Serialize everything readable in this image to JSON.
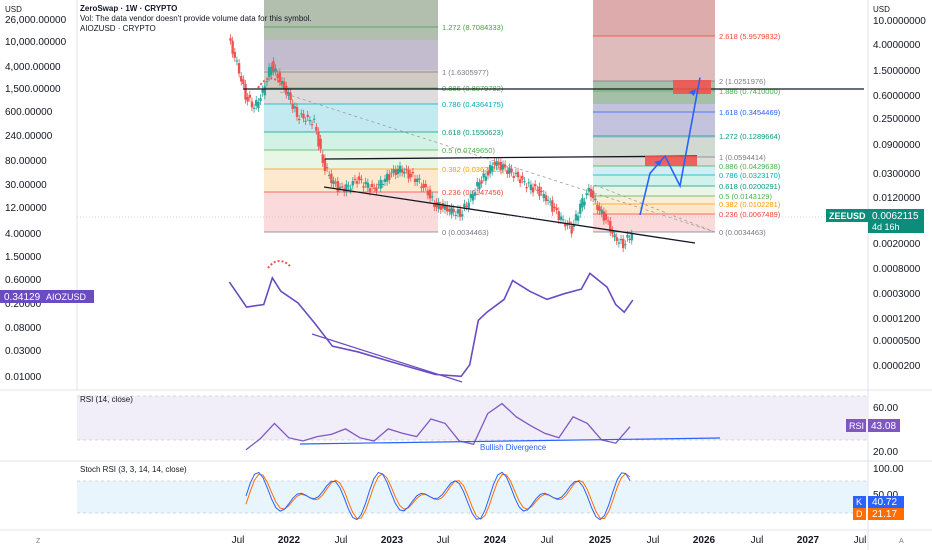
{
  "header": {
    "title": "ZeroSwap · 1W · CRYPTO",
    "vol_note": "Vol: The data vendor doesn't provide volume data for this symbol.",
    "compare_symbol": "AIOZUSD · CRYPTO"
  },
  "axis": {
    "left_currency": "USD",
    "right_currency": "USD",
    "left_ticks": [
      "26,000.00000",
      "10,000.00000",
      "4,000.00000",
      "1,500.00000",
      "600.00000",
      "240.00000",
      "80.00000",
      "30.00000",
      "12.00000",
      "4.00000",
      "1.50000",
      "0.60000",
      "0.20000",
      "0.08000",
      "0.03000",
      "0.01000"
    ],
    "right_ticks": [
      "10.0000000",
      "4.0000000",
      "1.5000000",
      "0.6000000",
      "0.2500000",
      "0.0900000",
      "0.0300000",
      "0.0120000",
      "0.0050000",
      "0.0020000",
      "0.0008000",
      "0.0003000",
      "0.0001200",
      "0.0000500",
      "0.0000200"
    ],
    "time_labels": [
      "Jul",
      "2022",
      "Jul",
      "2023",
      "Jul",
      "2024",
      "Jul",
      "2025",
      "Jul",
      "2026",
      "Jul",
      "2027",
      "Jul"
    ],
    "tz_icon_label": "Z",
    "scroll_icon_label": "A"
  },
  "price_badges": {
    "main_symbol": "ZEEUSD",
    "main_price": "0.0062115",
    "countdown": "4d 16h",
    "compare_price": "0.34129",
    "compare_symbol": "AIOZUSD"
  },
  "fib_left": {
    "levels": [
      {
        "ratio": "1.272",
        "value": "(8.7084333)"
      },
      {
        "ratio": "1",
        "value": "(1.6305977)"
      },
      {
        "ratio": "0.886",
        "value": "(0.8079782)"
      },
      {
        "ratio": "0.786",
        "value": "(0.4364175)"
      },
      {
        "ratio": "0.618",
        "value": "(0.1550623)"
      },
      {
        "ratio": "0.5",
        "value": "(0.0749650)"
      },
      {
        "ratio": "0.382",
        "value": "(0.0362419)"
      },
      {
        "ratio": "0.236",
        "value": "(0.0147456)"
      },
      {
        "ratio": "0",
        "value": "(0.0034463)"
      }
    ]
  },
  "fib_right": {
    "levels": [
      {
        "ratio": "2.618",
        "value": "(5.9579832)"
      },
      {
        "ratio": "2",
        "value": "(1.0251976)"
      },
      {
        "ratio": "1.886",
        "value": "(0.7410000)"
      },
      {
        "ratio": "1.618",
        "value": "(0.3454469)"
      },
      {
        "ratio": "1.272",
        "value": "(0.1289664)"
      },
      {
        "ratio": "1",
        "value": "(0.0594414)"
      },
      {
        "ratio": "0.886",
        "value": "(0.0429638)"
      },
      {
        "ratio": "0.786",
        "value": "(0.0323170)"
      },
      {
        "ratio": "0.618",
        "value": "(0.0200291)"
      },
      {
        "ratio": "0.5",
        "value": "(0.0143129)"
      },
      {
        "ratio": "0.382",
        "value": "(0.0102281)"
      },
      {
        "ratio": "0.236",
        "value": "(0.0067489)"
      },
      {
        "ratio": "0",
        "value": "(0.0034463)"
      }
    ]
  },
  "rsi": {
    "title": "RSI (14, close)",
    "ticks": [
      "60.00",
      "20.00"
    ],
    "badge_label": "RSI",
    "badge_value": "43.08",
    "annotation": "Bullish Divergence"
  },
  "stoch": {
    "title": "Stoch RSI (3, 3, 14, 14, close)",
    "ticks": [
      "100.00",
      "50.00",
      "0.00"
    ],
    "k_label": "K",
    "k_value": "40.72",
    "d_label": "D",
    "d_value": "21.17"
  },
  "colors": {
    "candle_up": "#26a69a",
    "candle_down": "#ef5350",
    "compare_line": "#6a4bc4",
    "rsi_line": "#7e57c2",
    "stoch_k": "#2962ff",
    "stoch_d": "#ff6d00",
    "projection": "#2962ff",
    "badge_main": "#0e8c7b",
    "badge_compare": "#6a4bc4"
  },
  "chart_data": {
    "type": "line",
    "scale": "log",
    "series": [
      {
        "name": "ZEEUSD",
        "points": [
          [
            "2021-06",
            1.9
          ],
          [
            "2021-07",
            0.9
          ],
          [
            "2021-08",
            0.35
          ],
          [
            "2021-09",
            0.25
          ],
          [
            "2021-10",
            0.38
          ],
          [
            "2021-11",
            0.9
          ],
          [
            "2021-12",
            0.55
          ],
          [
            "2022-01",
            0.35
          ],
          [
            "2022-02",
            0.2
          ],
          [
            "2022-03",
            0.18
          ],
          [
            "2022-04",
            0.16
          ],
          [
            "2022-05",
            0.05
          ],
          [
            "2022-06",
            0.03
          ],
          [
            "2022-07",
            0.022
          ],
          [
            "2022-08",
            0.025
          ],
          [
            "2022-09",
            0.03
          ],
          [
            "2022-10",
            0.026
          ],
          [
            "2022-11",
            0.022
          ],
          [
            "2022-12",
            0.03
          ],
          [
            "2023-01",
            0.035
          ],
          [
            "2023-02",
            0.042
          ],
          [
            "2023-03",
            0.035
          ],
          [
            "2023-04",
            0.03
          ],
          [
            "2023-05",
            0.022
          ],
          [
            "2023-06",
            0.015
          ],
          [
            "2023-07",
            0.013
          ],
          [
            "2023-08",
            0.012
          ],
          [
            "2023-09",
            0.011
          ],
          [
            "2023-10",
            0.016
          ],
          [
            "2023-11",
            0.025
          ],
          [
            "2023-12",
            0.035
          ],
          [
            "2024-01",
            0.05
          ],
          [
            "2024-02",
            0.042
          ],
          [
            "2024-03",
            0.038
          ],
          [
            "2024-04",
            0.03
          ],
          [
            "2024-05",
            0.025
          ],
          [
            "2024-06",
            0.022
          ],
          [
            "2024-07",
            0.018
          ],
          [
            "2024-08",
            0.012
          ],
          [
            "2024-09",
            0.009
          ],
          [
            "2024-10",
            0.007
          ],
          [
            "2024-11",
            0.014
          ],
          [
            "2024-12",
            0.022
          ],
          [
            "2025-01",
            0.014
          ],
          [
            "2025-02",
            0.009
          ],
          [
            "2025-03",
            0.0055
          ],
          [
            "2025-04",
            0.0045
          ],
          [
            "2025-05",
            0.0062
          ]
        ]
      },
      {
        "name": "AIOZUSD",
        "points": [
          [
            "2021-06",
            0.75
          ],
          [
            "2021-08",
            0.25
          ],
          [
            "2021-10",
            0.28
          ],
          [
            "2021-11",
            0.9
          ],
          [
            "2021-12",
            0.5
          ],
          [
            "2022-02",
            0.3
          ],
          [
            "2022-04",
            0.12
          ],
          [
            "2022-06",
            0.045
          ],
          [
            "2022-09",
            0.035
          ],
          [
            "2022-12",
            0.025
          ],
          [
            "2023-03",
            0.018
          ],
          [
            "2023-06",
            0.013
          ],
          [
            "2023-09",
            0.012
          ],
          [
            "2023-10",
            0.02
          ],
          [
            "2023-11",
            0.14
          ],
          [
            "2023-12",
            0.2
          ],
          [
            "2024-02",
            0.35
          ],
          [
            "2024-03",
            0.8
          ],
          [
            "2024-05",
            0.5
          ],
          [
            "2024-07",
            0.35
          ],
          [
            "2024-09",
            0.45
          ],
          [
            "2024-11",
            0.55
          ],
          [
            "2024-12",
            1.1
          ],
          [
            "2025-02",
            0.6
          ],
          [
            "2025-03",
            0.28
          ],
          [
            "2025-04",
            0.2
          ],
          [
            "2025-05",
            0.34
          ]
        ]
      }
    ],
    "projection_targets": [
      0.036,
      0.06,
      0.025,
      0.6
    ],
    "rsi_values": [
      22,
      32,
      46,
      33,
      30,
      34,
      36,
      41,
      33,
      30,
      41,
      37,
      34,
      50,
      46,
      30,
      27,
      55,
      64,
      52,
      44,
      37,
      33,
      52,
      46,
      31,
      28,
      43
    ],
    "rsi_range": [
      0,
      100
    ],
    "stoch_range": [
      0,
      100
    ]
  }
}
